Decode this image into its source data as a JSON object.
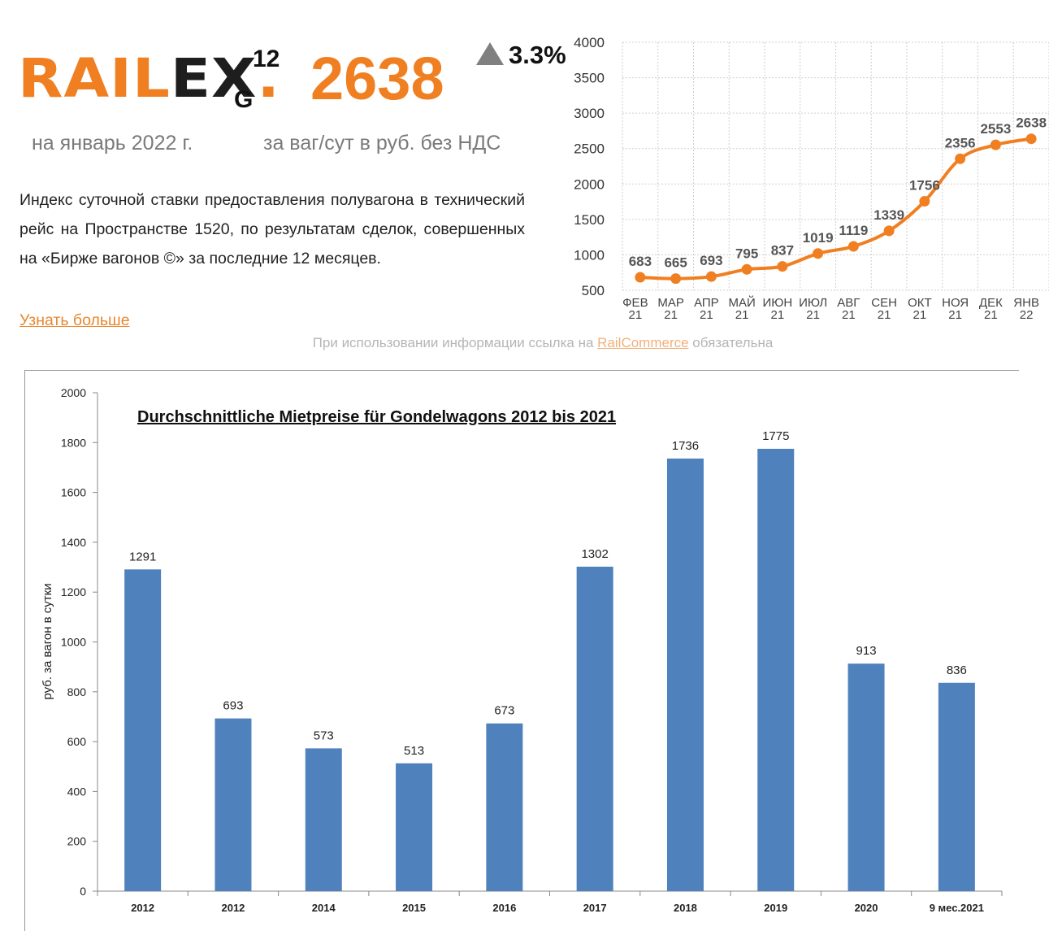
{
  "header": {
    "logo": {
      "rail": "RAIL",
      "ex": "EX",
      "dot": ".",
      "subscript": "G",
      "superscript": "12"
    },
    "index_value": "2638",
    "change": "3.3%",
    "date_text": "на январь 2022 г.",
    "unit_text": "за ваг/сут в руб. без НДС",
    "description": "Индекс суточной ставки предоставления полувагона в технический рейс на Пространстве 1520, по результатам сделок, совершенных на «Бирже вагонов ©» за последние 12 месяцев.",
    "more_link": "Узнать больше",
    "source_note": {
      "before": "При использовании информации ссылка на ",
      "link": "RailCommerce",
      "after": " обязательна"
    }
  },
  "colors": {
    "accent": "#f07f22",
    "bar": "#4f81bd",
    "text_muted": "#7a7a7a"
  },
  "chart_data": [
    {
      "type": "line",
      "title": "",
      "categories": [
        "ФЕВ 21",
        "МАР 21",
        "АПР 21",
        "МАЙ 21",
        "ИЮН 21",
        "ИЮЛ 21",
        "АВГ 21",
        "СЕН 21",
        "ОКТ 21",
        "НОЯ 21",
        "ДЕК 21",
        "ЯНВ 22"
      ],
      "category_lines": [
        [
          "ФЕВ",
          "21"
        ],
        [
          "МАР",
          "21"
        ],
        [
          "АПР",
          "21"
        ],
        [
          "МАЙ",
          "21"
        ],
        [
          "ИЮН",
          "21"
        ],
        [
          "ИЮЛ",
          "21"
        ],
        [
          "АВГ",
          "21"
        ],
        [
          "СЕН",
          "21"
        ],
        [
          "ОКТ",
          "21"
        ],
        [
          "НОЯ",
          "21"
        ],
        [
          "ДЕК",
          "21"
        ],
        [
          "ЯНВ",
          "22"
        ]
      ],
      "values": [
        683,
        665,
        693,
        795,
        837,
        1019,
        1119,
        1339,
        1756,
        2356,
        2553,
        2638
      ],
      "ylim": [
        500,
        4000
      ],
      "yticks": [
        500,
        1000,
        1500,
        2000,
        2500,
        3000,
        3500,
        4000
      ],
      "xlabel": "",
      "ylabel": "",
      "grid": true
    },
    {
      "type": "bar",
      "title": "Durchschnittliche Mietpreise für Gondelwagons 2012 bis 2021",
      "categories": [
        "2012",
        "2012",
        "2014",
        "2015",
        "2016",
        "2017",
        "2018",
        "2019",
        "2020",
        "9 мес.2021"
      ],
      "values": [
        1291,
        693,
        573,
        513,
        673,
        1302,
        1736,
        1775,
        913,
        836
      ],
      "ylim": [
        0,
        2000
      ],
      "yticks": [
        0,
        200,
        400,
        600,
        800,
        1000,
        1200,
        1400,
        1600,
        1800,
        2000
      ],
      "xlabel": "",
      "ylabel": "руб. за вагон в сутки",
      "grid": false
    }
  ]
}
